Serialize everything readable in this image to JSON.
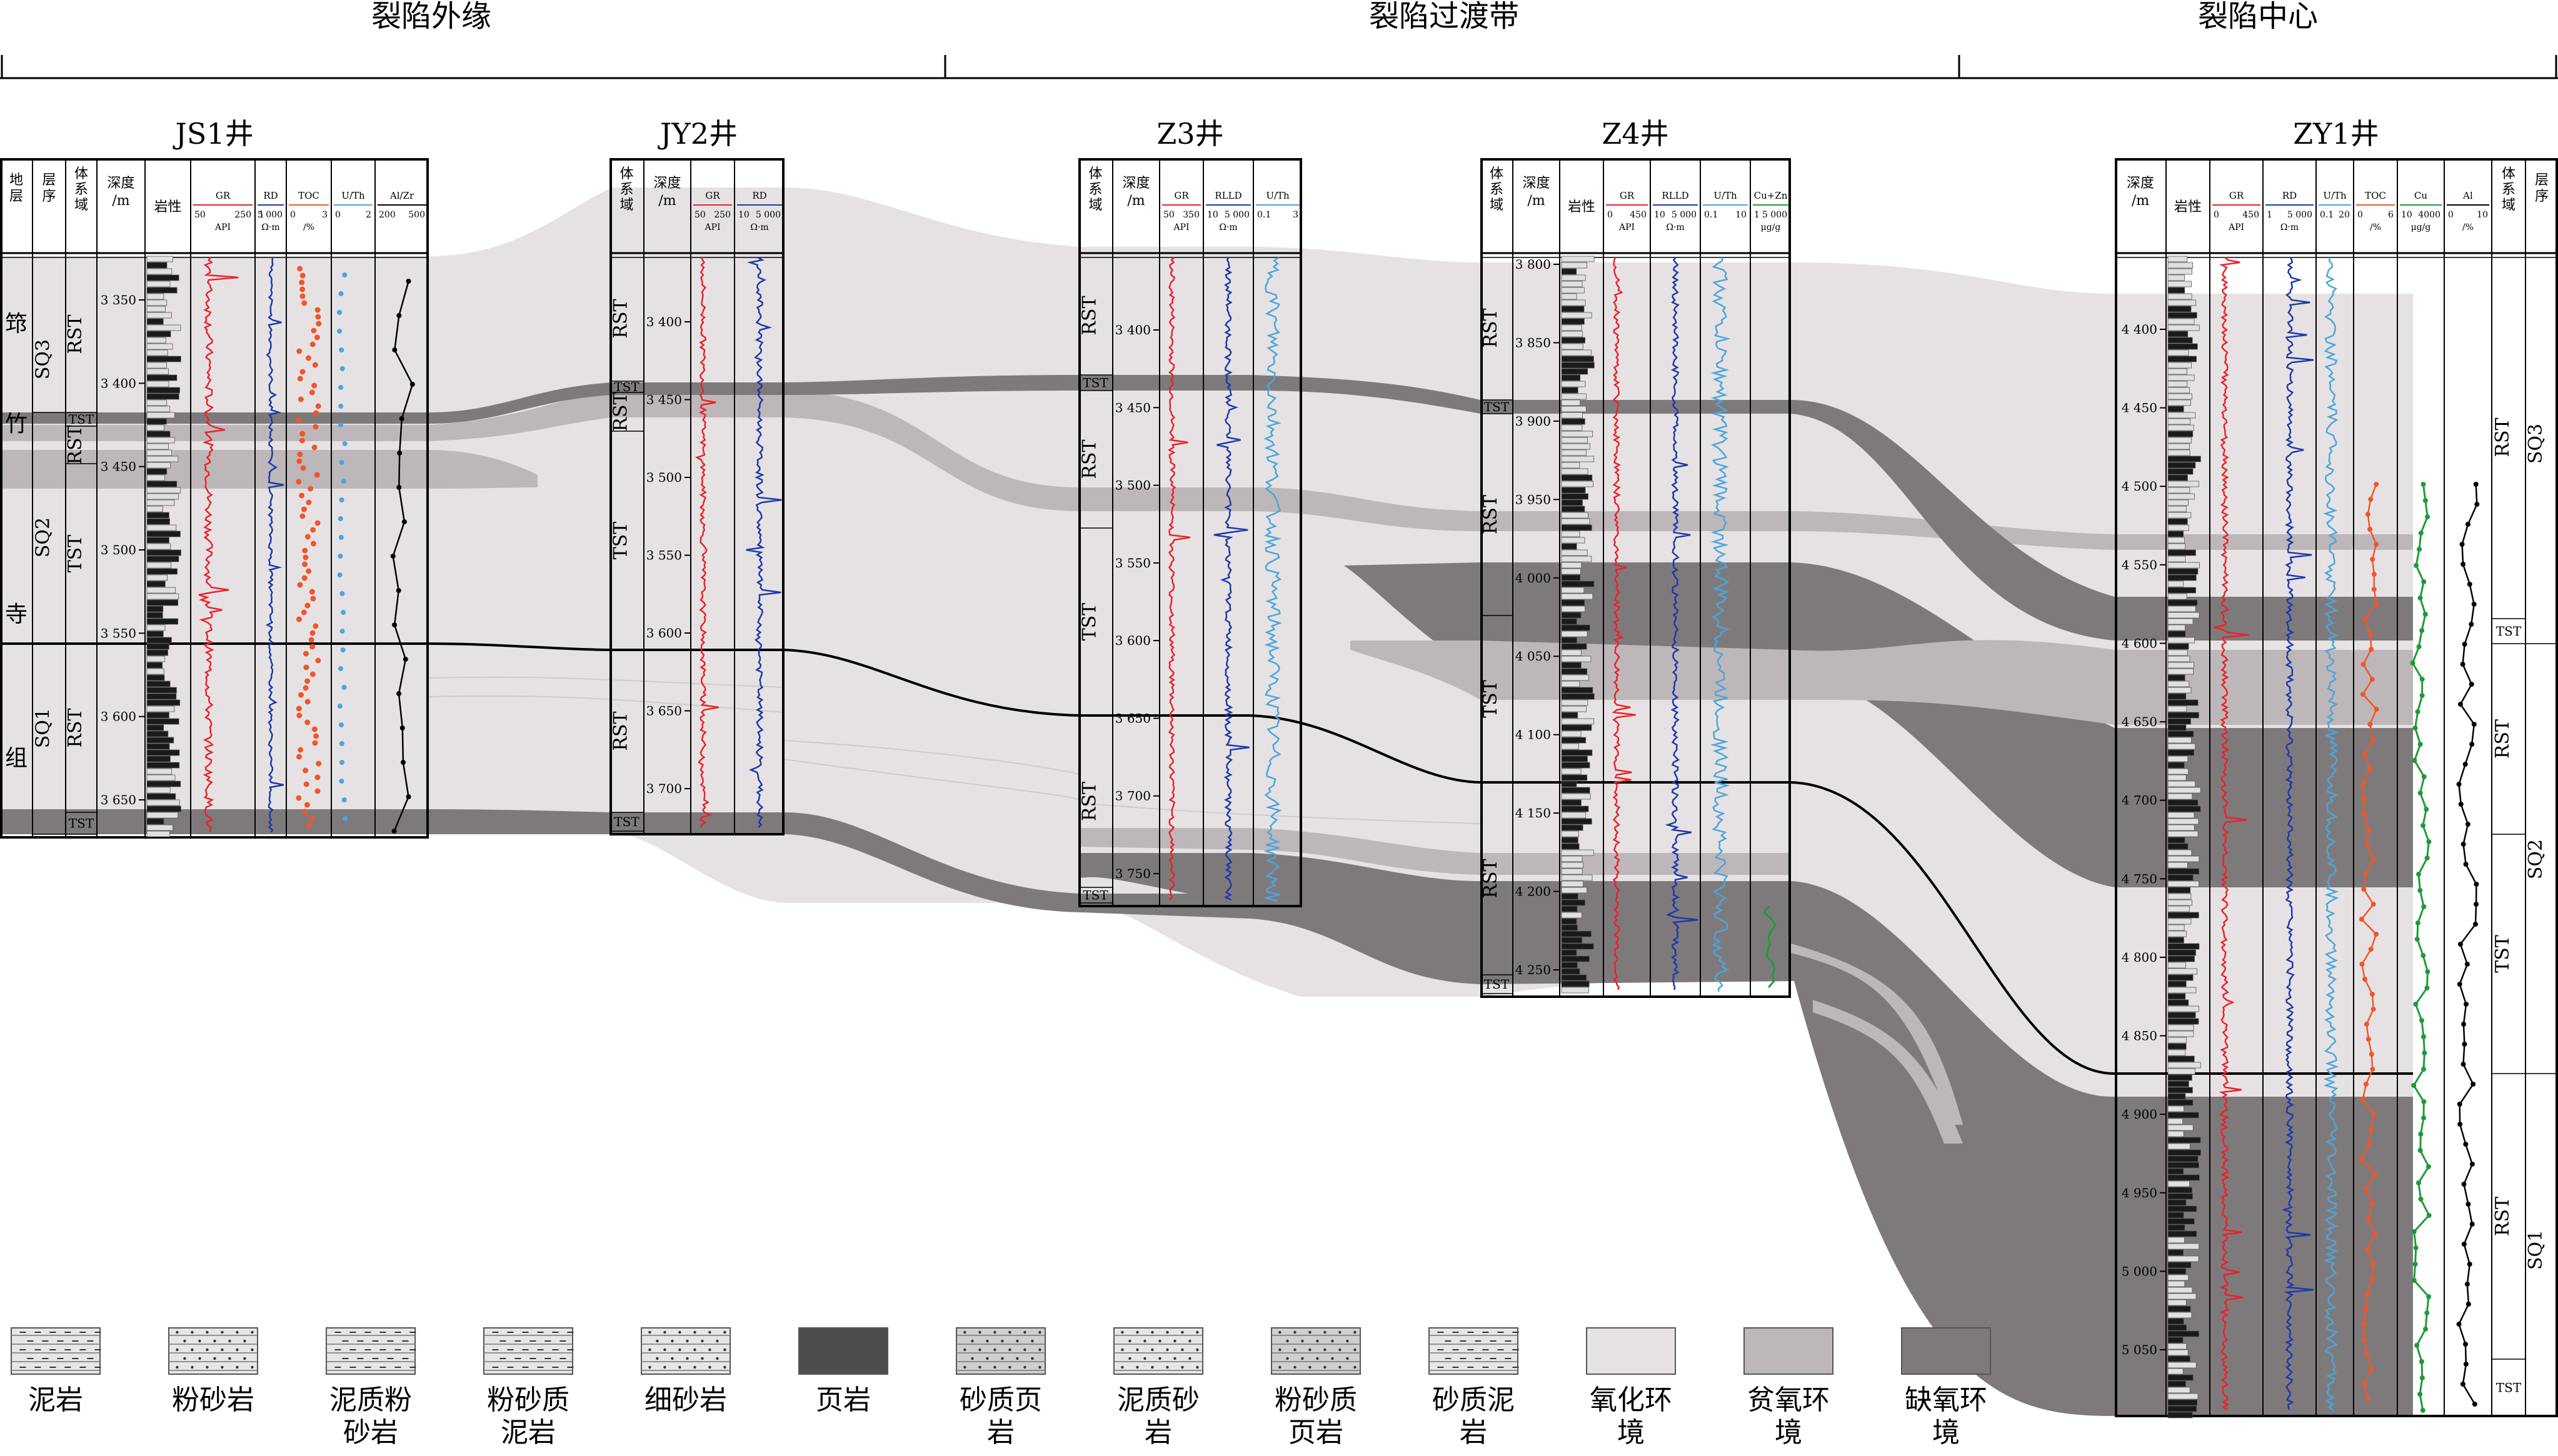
{
  "zones": [
    {
      "label": "裂陷外缘"
    },
    {
      "label": "裂陷过渡带"
    },
    {
      "label": "裂陷中心"
    }
  ],
  "wells": [
    {
      "id": "JS1",
      "name": "JS1井",
      "columns": [
        {
          "label": "地层"
        },
        {
          "label": "层序"
        },
        {
          "label": "体系域"
        },
        {
          "label": "深度/m"
        },
        {
          "label": "岩性"
        },
        {
          "label": "GR",
          "scale": [
            "50",
            "250"
          ],
          "unit": "API"
        },
        {
          "label": "RD",
          "scale": [
            "1",
            "5 000"
          ],
          "unit": "Ω·m"
        },
        {
          "label": "TOC",
          "scale": [
            "0",
            "3"
          ],
          "unit": "/%"
        },
        {
          "label": "U/Th",
          "scale": [
            "0",
            "2"
          ],
          "unit": ""
        },
        {
          "label": "Al/Zr",
          "scale": [
            "200",
            "500"
          ],
          "unit": ""
        }
      ],
      "formation_chars": [
        "筇",
        "竹",
        "寺",
        "组"
      ],
      "sequences": [
        "SQ3",
        "SQ2",
        "SQ1"
      ],
      "tracts": [
        "RST",
        "TST",
        "RST",
        "TST",
        "RST",
        "TST"
      ],
      "depth_ticks": [
        "3 350",
        "3 400",
        "3 450",
        "3 500",
        "3 550",
        "3 600",
        "3 650"
      ]
    },
    {
      "id": "JY2",
      "name": "JY2井",
      "columns": [
        {
          "label": "体系域"
        },
        {
          "label": "深度/m"
        },
        {
          "label": "GR",
          "scale": [
            "50",
            "250"
          ],
          "unit": "API"
        },
        {
          "label": "RD",
          "scale": [
            "10",
            "5 000"
          ],
          "unit": "Ω·m"
        }
      ],
      "tracts": [
        "RST",
        "TST",
        "RST",
        "TST",
        "RST",
        "TST"
      ],
      "depth_ticks": [
        "3 400",
        "3 450",
        "3 500",
        "3 550",
        "3 600",
        "3 650",
        "3 700"
      ]
    },
    {
      "id": "Z3",
      "name": "Z3井",
      "columns": [
        {
          "label": "体系域"
        },
        {
          "label": "深度/m"
        },
        {
          "label": "GR",
          "scale": [
            "50",
            "350"
          ],
          "unit": "API"
        },
        {
          "label": "RLLD",
          "scale": [
            "10",
            "5 000"
          ],
          "unit": "Ω·m"
        },
        {
          "label": "U/Th",
          "scale": [
            "0.1",
            "3"
          ],
          "unit": ""
        }
      ],
      "tracts": [
        "RST",
        "TST",
        "RST",
        "TST",
        "RST",
        "TST"
      ],
      "depth_ticks": [
        "3 400",
        "3 450",
        "3 500",
        "3 550",
        "3 600",
        "3 650",
        "3 700",
        "3 750"
      ]
    },
    {
      "id": "Z4",
      "name": "Z4井",
      "columns": [
        {
          "label": "体系域"
        },
        {
          "label": "深度/m"
        },
        {
          "label": "岩性"
        },
        {
          "label": "GR",
          "scale": [
            "0",
            "450"
          ],
          "unit": "API"
        },
        {
          "label": "RLLD",
          "scale": [
            "10",
            "5 000"
          ],
          "unit": "Ω·m"
        },
        {
          "label": "U/Th",
          "scale": [
            "0.1",
            "10"
          ],
          "unit": ""
        },
        {
          "label": "Cu+Zn",
          "scale": [
            "1",
            "5 000"
          ],
          "unit": "μg/g"
        }
      ],
      "tracts": [
        "RST",
        "TST",
        "RST",
        "TST",
        "RST",
        "TST"
      ],
      "depth_ticks": [
        "3 800",
        "3 850",
        "3 900",
        "3 950",
        "4 000",
        "4 050",
        "4 100",
        "4 150",
        "4 200",
        "4 250"
      ]
    },
    {
      "id": "ZY1",
      "name": "ZY1井",
      "columns": [
        {
          "label": "深度/m"
        },
        {
          "label": "岩性"
        },
        {
          "label": "GR",
          "scale": [
            "0",
            "450"
          ],
          "unit": "API"
        },
        {
          "label": "RD",
          "scale": [
            "1",
            "5 000"
          ],
          "unit": "Ω·m"
        },
        {
          "label": "U/Th",
          "scale": [
            "0.1",
            "20"
          ],
          "unit": ""
        },
        {
          "label": "TOC",
          "scale": [
            "0",
            "6"
          ],
          "unit": "/%"
        },
        {
          "label": "Cu",
          "scale": [
            "10",
            "4000"
          ],
          "unit": "μg/g"
        },
        {
          "label": "Al",
          "scale": [
            "0",
            "10"
          ],
          "unit": "/%"
        },
        {
          "label": "体系域"
        },
        {
          "label": "层序"
        }
      ],
      "sequences": [
        "SQ3",
        "SQ2",
        "SQ1"
      ],
      "tracts": [
        "RST",
        "TST",
        "RST",
        "TST",
        "RST",
        "TST"
      ],
      "depth_ticks": [
        "4 400",
        "4 450",
        "4 500",
        "4 550",
        "4 600",
        "4 650",
        "4 700",
        "4 750",
        "4 800",
        "4 850",
        "4 900",
        "4 950",
        "5 000",
        "5 050"
      ]
    }
  ],
  "legend": [
    {
      "label": "泥岩",
      "pattern": "mudstone",
      "color": "#e6e6e6"
    },
    {
      "label": "粉砂岩",
      "pattern": "siltstone",
      "color": "#e6e6e6"
    },
    {
      "label": "泥质粉砂岩",
      "pattern": "argillaceous-siltstone",
      "color": "#e6e6e6"
    },
    {
      "label": "粉砂质泥岩",
      "pattern": "silty-mudstone",
      "color": "#e6e6e6"
    },
    {
      "label": "细砂岩",
      "pattern": "fine-sandstone",
      "color": "#e6e6e6"
    },
    {
      "label": "页岩",
      "pattern": "shale",
      "color": "#4d4d4d"
    },
    {
      "label": "砂质页岩",
      "pattern": "sandy-shale",
      "color": "#cfcfcf"
    },
    {
      "label": "泥质砂岩",
      "pattern": "argillaceous-sandstone",
      "color": "#e6e6e6"
    },
    {
      "label": "粉砂质页岩",
      "pattern": "silty-shale",
      "color": "#cfcfcf"
    },
    {
      "label": "砂质泥岩",
      "pattern": "sandy-mudstone",
      "color": "#e6e6e6"
    },
    {
      "label": "氧化环境",
      "pattern": "oxic",
      "color": "#e6e2e3"
    },
    {
      "label": "贫氧环境",
      "pattern": "dysoxic",
      "color": "#bdb7b9"
    },
    {
      "label": "缺氧环境",
      "pattern": "anoxic",
      "color": "#7e7a7c"
    }
  ],
  "colors": {
    "oxic": "#e6e2e3",
    "dysoxic": "#bdb7b9",
    "anoxic": "#7e7a7c",
    "gr_curve": "#e8232a",
    "rd_curve": "#1c3aa8",
    "uth_curve": "#4aa6dc",
    "toc_curve": "#f0562a",
    "cu_curve": "#1f9a3a"
  }
}
